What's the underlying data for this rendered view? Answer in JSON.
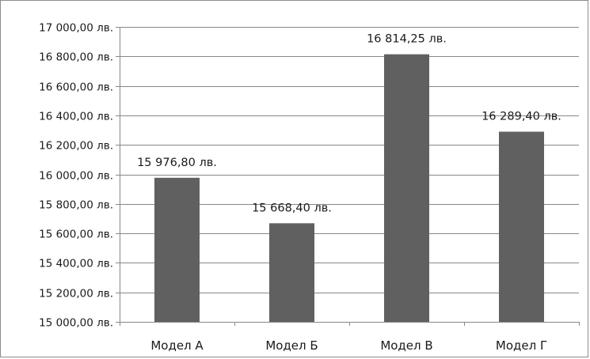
{
  "chart_data": {
    "type": "bar",
    "title": "",
    "xlabel": "",
    "ylabel": "",
    "categories": [
      "Модел А",
      "Модел Б",
      "Модел В",
      "Модел Г"
    ],
    "values": [
      15976.8,
      15668.4,
      16814.25,
      16289.4
    ],
    "data_labels": [
      "15 976,80 лв.",
      "15 668,40 лв.",
      "16 814,25 лв.",
      "16 289,40 лв."
    ],
    "ylim": [
      15000,
      17000
    ],
    "yticks": [
      15000,
      15200,
      15400,
      15600,
      15800,
      16000,
      16200,
      16400,
      16600,
      16800,
      17000
    ],
    "ytick_labels": [
      "15 000,00 лв.",
      "15 200,00 лв.",
      "15 400,00 лв.",
      "15 600,00 лв.",
      "15 800,00 лв.",
      "16 000,00 лв.",
      "16 200,00 лв.",
      "16 400,00 лв.",
      "16 600,00 лв.",
      "16 800,00 лв.",
      "17 000,00 лв."
    ],
    "grid": true,
    "legend": "none",
    "colors": {
      "bar": "#606060",
      "grid": "#878787",
      "axis": "#878787"
    }
  }
}
